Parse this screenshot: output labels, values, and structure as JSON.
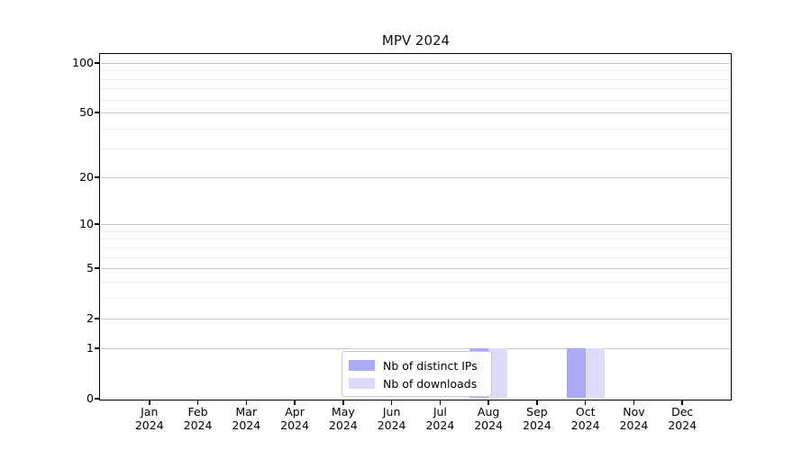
{
  "chart_data": {
    "type": "bar",
    "title": "MPV 2024",
    "x_categories": [
      "Jan",
      "Feb",
      "Mar",
      "Apr",
      "May",
      "Jun",
      "Jul",
      "Aug",
      "Sep",
      "Oct",
      "Nov",
      "Dec"
    ],
    "x_year": "2024",
    "series": [
      {
        "name": "Nb of distinct IPs",
        "color": "#aaaaf5",
        "values": [
          0,
          0,
          0,
          0,
          0,
          0,
          0,
          1,
          0,
          1,
          0,
          0
        ]
      },
      {
        "name": "Nb of downloads",
        "color": "#dcdcf9",
        "values": [
          0,
          0,
          0,
          0,
          0,
          0,
          0,
          1,
          0,
          1,
          0,
          0
        ]
      }
    ],
    "yscale": "log1p",
    "ylim": [
      0,
      112
    ],
    "y_major_ticks": [
      0,
      1,
      2,
      5,
      10,
      20,
      50,
      100
    ],
    "y_minor_ticks": [
      3,
      4,
      6,
      7,
      8,
      9,
      30,
      40,
      60,
      70,
      80,
      90
    ],
    "grid": true,
    "legend_position": "lower-center-inside"
  },
  "colors": {
    "major_grid": "#c9c9c9",
    "minor_grid": "#ececec",
    "spine": "#000000",
    "background": "#ffffff",
    "legend_border": "#c9c9c9"
  }
}
